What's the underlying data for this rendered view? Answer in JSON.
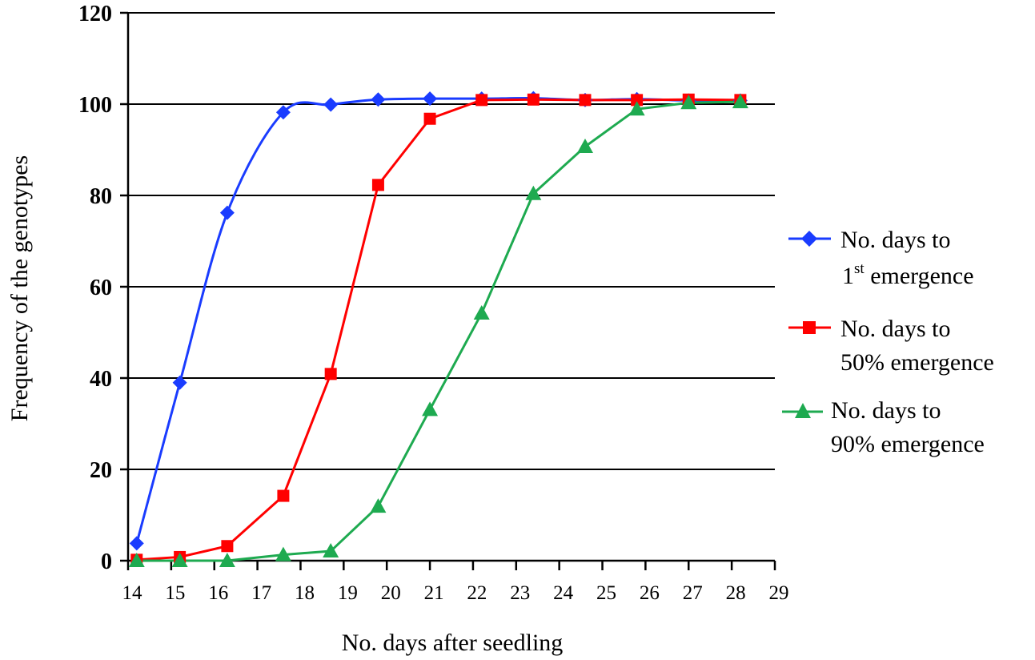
{
  "chart_data": {
    "type": "line",
    "xlabel": "No. days after seedling",
    "ylabel": "Frequency of the genotypes",
    "xlim": [
      14,
      29
    ],
    "ylim": [
      0,
      120
    ],
    "x_ticks": [
      "14",
      "15",
      "16",
      "17",
      "18",
      "19",
      "20",
      "21",
      "22",
      "23",
      "24",
      "25",
      "26",
      "27",
      "28",
      "29"
    ],
    "y_ticks": [
      "0",
      "20",
      "40",
      "60",
      "80",
      "100",
      "120"
    ],
    "grid": "horizontal",
    "legend_position": "right",
    "series": [
      {
        "name_line1": "No. days to",
        "name_line2_prefix": "1",
        "name_line2_sup": "st",
        "name_line2_suffix": " emergence",
        "color": "#1a3cff",
        "marker": "diamond",
        "smooth": true,
        "x": [
          14.2,
          15.2,
          16.3,
          17.6,
          18.7,
          19.8,
          21.0,
          22.2,
          23.4,
          24.6,
          25.8,
          27.0,
          28.2
        ],
        "y": [
          3.8,
          39,
          76.2,
          98.2,
          99.9,
          101.0,
          101.2,
          101.2,
          101.3,
          100.9,
          101.1,
          100.8,
          100.8
        ]
      },
      {
        "name_line1": "No. days to",
        "name_line2": "50% emergence",
        "color": "#ff0000",
        "marker": "square",
        "smooth": false,
        "x": [
          14.2,
          15.2,
          16.3,
          17.6,
          18.7,
          19.8,
          21.0,
          22.2,
          23.4,
          24.6,
          25.8,
          27.0,
          28.2
        ],
        "y": [
          0.2,
          0.8,
          3.2,
          14.2,
          40.9,
          82.3,
          96.8,
          100.9,
          101.0,
          100.9,
          100.9,
          101.0,
          100.9
        ]
      },
      {
        "name_line1": "No. days to",
        "name_line2": "90% emergence",
        "color": "#1eaa50",
        "marker": "triangle",
        "smooth": false,
        "x": [
          14.2,
          15.2,
          16.3,
          17.6,
          18.7,
          19.8,
          21.0,
          22.2,
          23.4,
          24.6,
          25.8,
          27.0,
          28.2
        ],
        "y": [
          0.0,
          0.0,
          0.0,
          1.3,
          2.1,
          11.9,
          33.1,
          54.2,
          80.4,
          90.7,
          98.9,
          100.3,
          100.5
        ]
      }
    ]
  }
}
